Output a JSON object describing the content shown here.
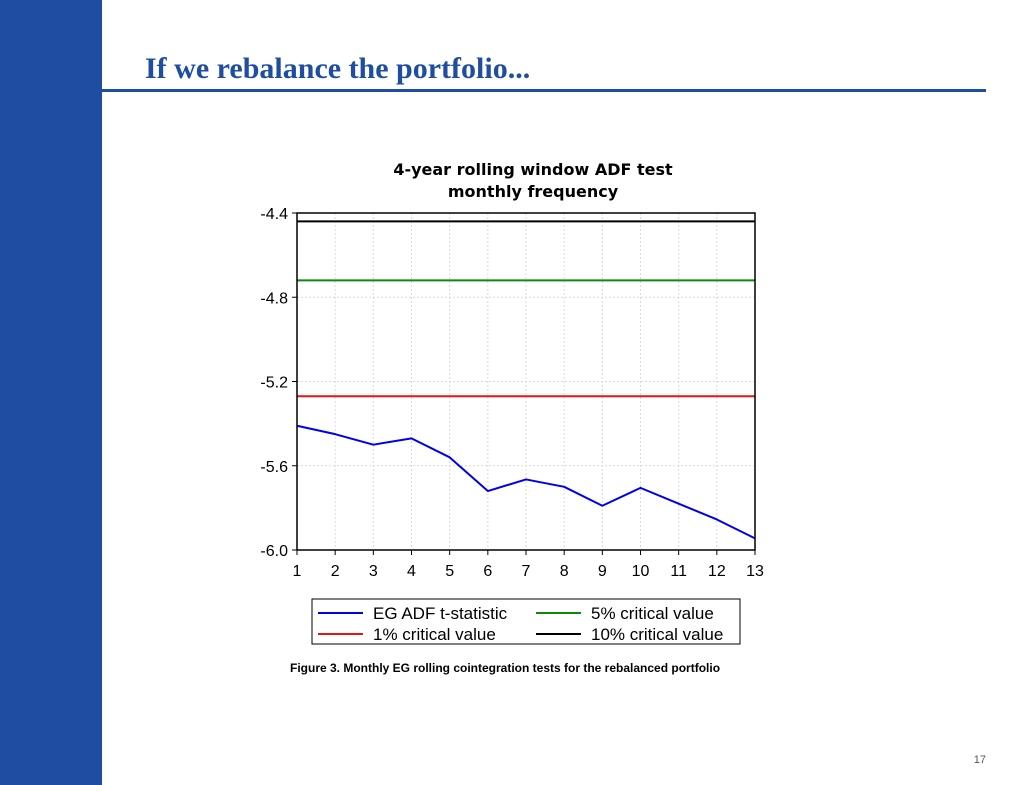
{
  "slide": {
    "title": "If we rebalance the portfolio...",
    "caption": "Figure 3. Monthly EG rolling cointegration tests for the rebalanced portfolio",
    "page_number": "17"
  },
  "colors": {
    "theme_blue": "#1f4ea1"
  },
  "chart_data": {
    "type": "line",
    "title_lines": [
      "4-year rolling window ADF test",
      "monthly frequency"
    ],
    "xlabel": "",
    "ylabel": "",
    "x": [
      1,
      2,
      3,
      4,
      5,
      6,
      7,
      8,
      9,
      10,
      11,
      12,
      13
    ],
    "x_tick_labels": [
      "1",
      "2",
      "3",
      "4",
      "5",
      "6",
      "7",
      "8",
      "9",
      "10",
      "11",
      "12",
      "13"
    ],
    "ylim": [
      -6.0,
      -4.4
    ],
    "y_ticks": [
      -6.0,
      -5.6,
      -5.2,
      -4.8,
      -4.4
    ],
    "y_tick_labels": [
      "-6.0",
      "-5.6",
      "-5.2",
      "-4.8",
      "-4.4"
    ],
    "grid": true,
    "legend_position": "bottom",
    "series": [
      {
        "name": "EG ADF t-statistic",
        "color": "#0000ee",
        "values": [
          -5.41,
          -5.45,
          -5.5,
          -5.47,
          -5.56,
          -5.72,
          -5.665,
          -5.7,
          -5.79,
          -5.705,
          -5.78,
          -5.855,
          -5.945
        ]
      },
      {
        "name": "5% critical value",
        "color": "#118811",
        "values": [
          -4.72,
          -4.72,
          -4.72,
          -4.72,
          -4.72,
          -4.72,
          -4.72,
          -4.72,
          -4.72,
          -4.72,
          -4.72,
          -4.72,
          -4.72
        ]
      },
      {
        "name": "1% critical value",
        "color": "#ee1111",
        "values": [
          -5.27,
          -5.27,
          -5.27,
          -5.27,
          -5.27,
          -5.27,
          -5.27,
          -5.27,
          -5.27,
          -5.27,
          -5.27,
          -5.27,
          -5.27
        ]
      },
      {
        "name": "10% critical value",
        "color": "#000000",
        "values": [
          -4.44,
          -4.44,
          -4.44,
          -4.44,
          -4.44,
          -4.44,
          -4.44,
          -4.44,
          -4.44,
          -4.44,
          -4.44,
          -4.44,
          -4.44
        ]
      }
    ]
  }
}
